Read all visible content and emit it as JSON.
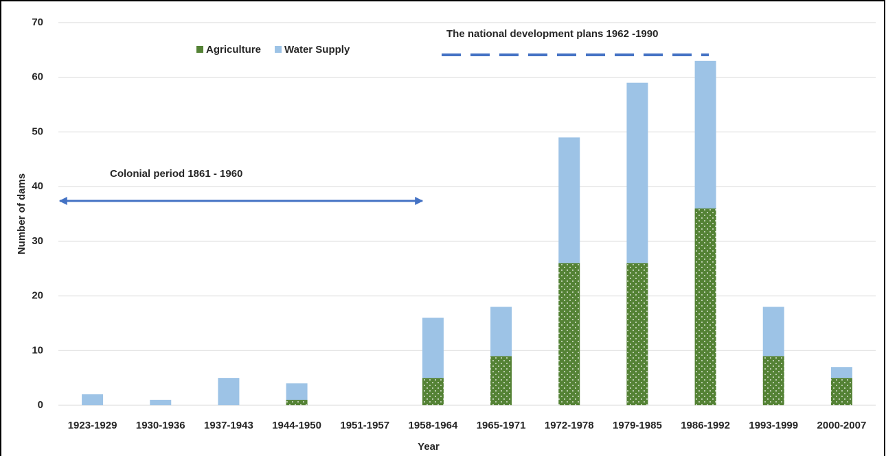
{
  "chart_data": {
    "type": "stacked_bar",
    "y_label": "Number of dams",
    "x_label": "Year",
    "categories": [
      "1923-1929",
      "1930-1936",
      "1937-1943",
      "1944-1950",
      "1951-1957",
      "1958-1964",
      "1965-1971",
      "1972-1978",
      "1979-1985",
      "1986-1992",
      "1993-1999",
      "2000-2007"
    ],
    "series": [
      {
        "name": "Agriculture",
        "color": "#548235",
        "values": [
          0,
          0,
          0,
          1,
          0,
          5,
          9,
          26,
          26,
          36,
          9,
          5
        ]
      },
      {
        "name": "Water Supply",
        "color": "#9dc3e6",
        "values": [
          2,
          1,
          5,
          3,
          0,
          11,
          9,
          23,
          33,
          27,
          9,
          2
        ]
      }
    ],
    "ylim": [
      0,
      70
    ],
    "yticks": [
      0,
      10,
      20,
      30,
      40,
      50,
      60,
      70
    ],
    "grid": true,
    "annotations": [
      "Colonial period 1861 - 1960",
      "The national development plans 1962 -1990"
    ]
  }
}
